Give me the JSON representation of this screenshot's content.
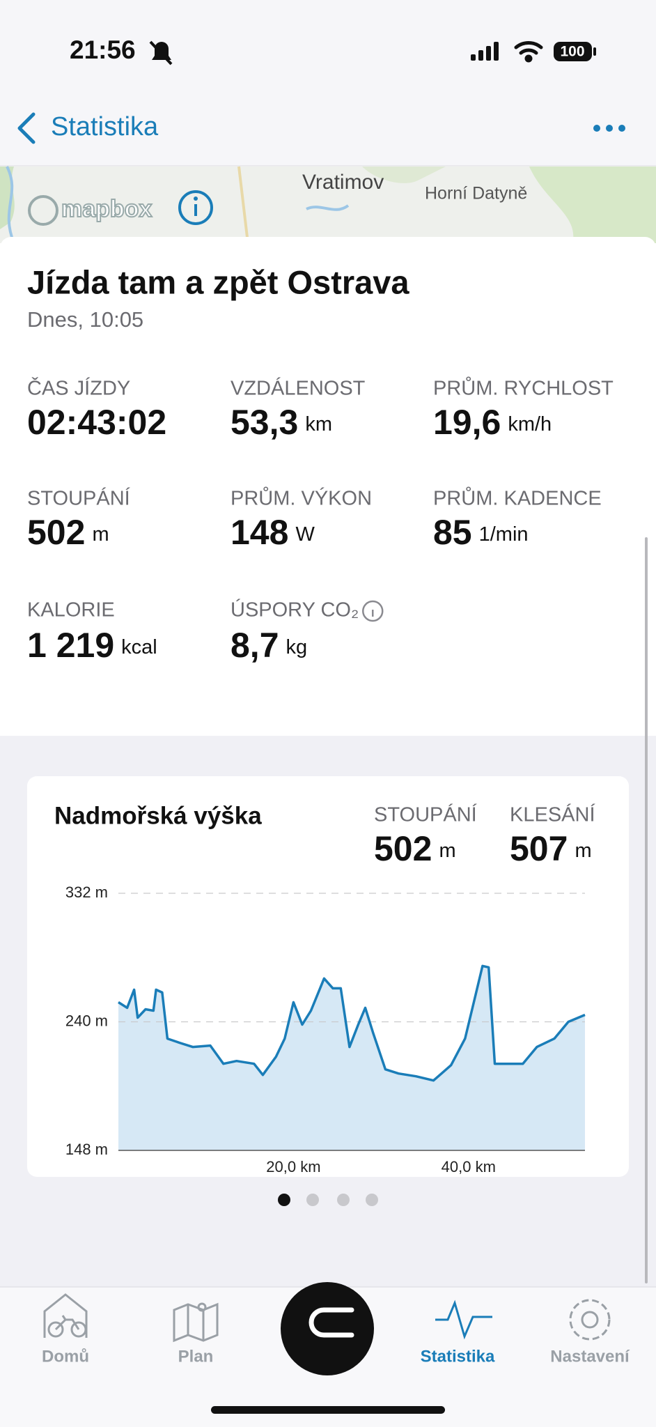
{
  "status_bar": {
    "time": "21:56",
    "battery": "100"
  },
  "nav": {
    "back": "Statistika"
  },
  "map": {
    "labels": [
      "Vratimov",
      "Horní Datyně"
    ],
    "attribution": "mapbox"
  },
  "activity": {
    "title": "Jízda tam a zpět Ostrava",
    "date": "Dnes, 10:05",
    "stats": [
      {
        "label": "ČAS JÍZDY",
        "value": "02:43:02"
      },
      {
        "label": "VZDÁLENOST",
        "value": "53,3",
        "unit": "km"
      },
      {
        "label": "PRŮM. RYCHLOST",
        "value": "19,6",
        "unit": "km/h"
      },
      {
        "label": "STOUPÁNÍ",
        "value": "502",
        "unit": "m"
      },
      {
        "label": "PRŮM. VÝKON",
        "value": "148",
        "unit": "W"
      },
      {
        "label": "PRŮM. KADENCE",
        "value": "85",
        "unit": "1/min"
      },
      {
        "label": "KALORIE",
        "value": "1 219",
        "unit": "kcal"
      },
      {
        "label": "ÚSPORY CO₂",
        "value": "8,7",
        "unit": "kg"
      }
    ]
  },
  "elevation_chart": {
    "type": "area",
    "title": "Nadmořská výška",
    "summary": [
      {
        "label": "STOUPÁNÍ",
        "value": 502,
        "unit": "m"
      },
      {
        "label": "KLESÁNÍ",
        "value": 507,
        "unit": "m"
      }
    ],
    "x": [
      0,
      1,
      1.8,
      2.2,
      3.1,
      4,
      4.3,
      5,
      5.6,
      7,
      8.5,
      10.5,
      12,
      13.5,
      15.5,
      16.5,
      18,
      19,
      20,
      21,
      22,
      23.5,
      24.5,
      25.4,
      26.4,
      27.4,
      28.2,
      29.1,
      30.5,
      32,
      34,
      36,
      38,
      39.6,
      40.6,
      41.6,
      42.3,
      43,
      44.2,
      46.2,
      47.8,
      49.8,
      51.4,
      53.3
    ],
    "values": [
      254,
      250,
      263,
      243,
      249,
      248,
      263,
      261,
      228,
      225,
      222,
      223,
      210,
      212,
      210,
      202,
      215,
      228,
      254,
      238,
      248,
      271,
      264,
      264,
      222,
      238,
      250,
      232,
      206,
      203,
      201,
      198,
      209,
      228,
      254,
      280,
      279,
      210,
      210,
      210,
      222,
      228,
      240,
      245
    ],
    "xlim": [
      0,
      53.3
    ],
    "ylim": [
      148,
      332
    ],
    "yticks": [
      {
        "value": 148,
        "label": "148 m"
      },
      {
        "value": 240,
        "label": "240 m"
      },
      {
        "value": 332,
        "label": "332 m"
      }
    ],
    "xticks": [
      {
        "value": 20,
        "label": "20,0 km"
      },
      {
        "value": 40,
        "label": "40,0 km"
      }
    ],
    "color": "#1a7db8",
    "fill": "#d6e8f5",
    "grid": true
  },
  "tabs": [
    "Domů",
    "Plan",
    "Statistika",
    "Nastavení"
  ]
}
